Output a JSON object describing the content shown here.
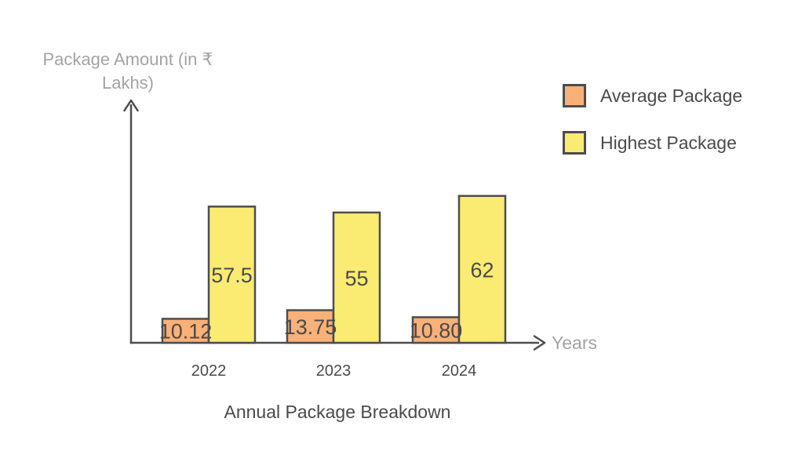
{
  "chart_data": {
    "type": "bar",
    "title": "Annual Package Breakdown",
    "xlabel": "Years",
    "ylabel": "Package Amount (in ₹ Lakhs)",
    "categories": [
      "2022",
      "2023",
      "2024"
    ],
    "series": [
      {
        "name": "Average Package",
        "color": "#FAB178",
        "values": [
          10.12,
          13.75,
          10.8
        ],
        "value_labels": [
          "10.12",
          "13.75",
          "10.80"
        ]
      },
      {
        "name": "Highest Package",
        "color": "#FAEB73",
        "values": [
          57.5,
          55,
          62
        ],
        "value_labels": [
          "57.5",
          "55",
          "62"
        ]
      }
    ],
    "ylim": [
      0,
      100
    ],
    "grid": false,
    "legend_position": "top-right",
    "axis_color": "#4D4D4D",
    "text_color": "#4A4A4A",
    "muted_text_color": "#A3A3A3",
    "background_color": "#FFFFFF"
  }
}
